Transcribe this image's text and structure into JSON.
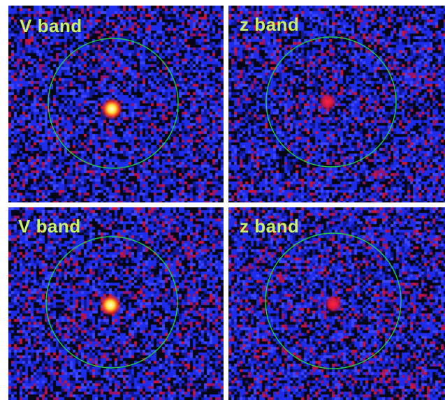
{
  "colors": {
    "label_text": "#c8f06a",
    "aperture_circle": "#22cc44",
    "background_noise_blue": "#1a2cff",
    "background_noise_red": "#c0103a",
    "source_core": "#fff8c0"
  },
  "panels": [
    {
      "label": "V band",
      "source_brightness": "bright"
    },
    {
      "label": "z band",
      "source_brightness": "faint"
    },
    {
      "label": "V band",
      "source_brightness": "bright"
    },
    {
      "label": "z band",
      "source_brightness": "faint"
    }
  ]
}
